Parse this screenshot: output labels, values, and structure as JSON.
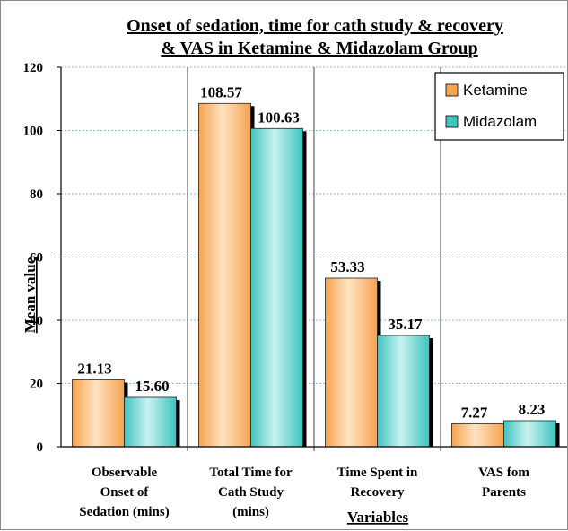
{
  "chart_data": {
    "type": "bar",
    "title_lines": [
      "Onset of sedation, time for cath study & recovery",
      "& VAS in Ketamine & Midazolam Group"
    ],
    "ylabel": "Mean value",
    "xlabel": "Variables",
    "ylim": [
      0,
      120
    ],
    "yticks": [
      "0",
      "20",
      "40",
      "60",
      "80",
      "100",
      "120"
    ],
    "grid": true,
    "legend_position": "top-right",
    "categories": [
      [
        "Observable",
        "Onset of",
        "Sedation (mins)"
      ],
      [
        "Total Time for",
        "Cath Study",
        "(mins)"
      ],
      [
        "Time Spent in",
        "Recovery"
      ],
      [
        "VAS fom",
        "Parents"
      ]
    ],
    "series": [
      {
        "name": "Ketamine",
        "values": [
          21.13,
          108.57,
          53.33,
          7.27
        ],
        "labels": [
          "21.13",
          "108.57",
          "53.33",
          "7.27"
        ],
        "color": "#f5a34f",
        "light": "#ffe3c2"
      },
      {
        "name": "Midazolam",
        "values": [
          15.6,
          100.63,
          35.17,
          8.23
        ],
        "labels": [
          "15.60",
          "100.63",
          "35.17",
          "8.23"
        ],
        "color": "#3fc4c0",
        "light": "#c9f2f0"
      }
    ]
  }
}
